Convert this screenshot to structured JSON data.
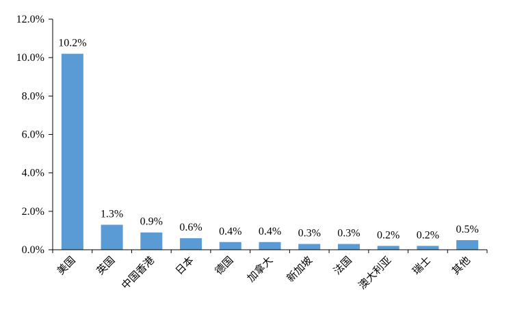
{
  "chart_data": {
    "type": "bar",
    "categories": [
      "美国",
      "英国",
      "中国香港",
      "日本",
      "德国",
      "加拿大",
      "新加坡",
      "法国",
      "澳大利亚",
      "瑞士",
      "其他"
    ],
    "values": [
      10.2,
      1.3,
      0.9,
      0.6,
      0.4,
      0.4,
      0.3,
      0.3,
      0.2,
      0.2,
      0.5
    ],
    "data_labels": [
      "10.2%",
      "1.3%",
      "0.9%",
      "0.6%",
      "0.4%",
      "0.4%",
      "0.3%",
      "0.3%",
      "0.2%",
      "0.2%",
      "0.5%"
    ],
    "title": "",
    "xlabel": "",
    "ylabel": "",
    "ylim": [
      0,
      12
    ],
    "y_ticks": [
      0,
      2,
      4,
      6,
      8,
      10,
      12
    ],
    "y_tick_labels": [
      "0.0%",
      "2.0%",
      "4.0%",
      "6.0%",
      "8.0%",
      "10.0%",
      "12.0%"
    ],
    "grid": false,
    "legend": "none",
    "bar_color": "#5B9BD5",
    "axis_color": "#000000"
  }
}
